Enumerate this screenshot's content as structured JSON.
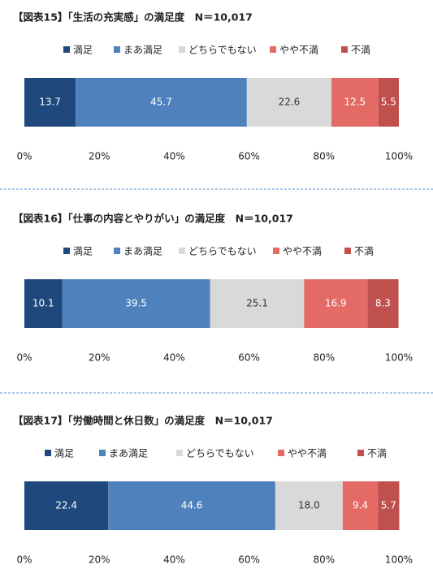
{
  "chart_data": [
    {
      "type": "bar",
      "orientation": "horizontal",
      "stacked": true,
      "title": "【図表15】「生活の充実感」の満足度　N＝10,017",
      "categories": [
        null
      ],
      "series": [
        {
          "name": "満足",
          "color": "#1f497d",
          "values": [
            13.7
          ]
        },
        {
          "name": "まあ満足",
          "color": "#4f81bd",
          "values": [
            45.7
          ]
        },
        {
          "name": "どちらでもない",
          "color": "#d9d9d9",
          "values": [
            22.6
          ]
        },
        {
          "name": "やや不満",
          "color": "#e46a66",
          "values": [
            12.5
          ]
        },
        {
          "name": "不満",
          "color": "#c0504d",
          "values": [
            5.5
          ]
        }
      ],
      "xlim": [
        0,
        100
      ],
      "xticks": [
        {
          "value": 0,
          "label": "0%"
        },
        {
          "value": 20,
          "label": "20%"
        },
        {
          "value": 40,
          "label": "40%"
        },
        {
          "value": 60,
          "label": "60%"
        },
        {
          "value": 80,
          "label": "80%"
        },
        {
          "value": 100,
          "label": "100%"
        }
      ]
    },
    {
      "type": "bar",
      "orientation": "horizontal",
      "stacked": true,
      "title": "【図表16】「仕事の内容とやりがい」の満足度　N＝10,017",
      "categories": [
        null
      ],
      "series": [
        {
          "name": "満足",
          "color": "#1f497d",
          "values": [
            10.1
          ]
        },
        {
          "name": "まあ満足",
          "color": "#4f81bd",
          "values": [
            39.5
          ]
        },
        {
          "name": "どちらでもない",
          "color": "#d9d9d9",
          "values": [
            25.1
          ]
        },
        {
          "name": "やや不満",
          "color": "#e46a66",
          "values": [
            16.9
          ]
        },
        {
          "name": "不満",
          "color": "#c0504d",
          "values": [
            8.3
          ]
        }
      ],
      "xlim": [
        0,
        100
      ],
      "xticks": [
        {
          "value": 0,
          "label": "0%"
        },
        {
          "value": 20,
          "label": "20%"
        },
        {
          "value": 40,
          "label": "40%"
        },
        {
          "value": 60,
          "label": "60%"
        },
        {
          "value": 80,
          "label": "80%"
        },
        {
          "value": 100,
          "label": "100%"
        }
      ]
    },
    {
      "type": "bar",
      "orientation": "horizontal",
      "stacked": true,
      "title": "【図表17】「労働時間と休日数」の満足度　N＝10,017",
      "categories": [
        null
      ],
      "series": [
        {
          "name": "満足",
          "color": "#1f497d",
          "values": [
            22.4
          ]
        },
        {
          "name": "まあ満足",
          "color": "#4f81bd",
          "values": [
            44.6
          ]
        },
        {
          "name": "どちらでもない",
          "color": "#d9d9d9",
          "values": [
            18
          ],
          "value_labels": [
            "18.0"
          ]
        },
        {
          "name": "やや不満",
          "color": "#e46a66",
          "values": [
            9.4
          ]
        },
        {
          "name": "不満",
          "color": "#c0504d",
          "values": [
            5.7
          ]
        }
      ],
      "xlim": [
        0,
        100
      ],
      "xticks": [
        {
          "value": 0,
          "label": "0%"
        },
        {
          "value": 20,
          "label": "20%"
        },
        {
          "value": 40,
          "label": "40%"
        },
        {
          "value": 60,
          "label": "60%"
        },
        {
          "value": 80,
          "label": "80%"
        },
        {
          "value": 100,
          "label": "100%"
        }
      ]
    }
  ]
}
